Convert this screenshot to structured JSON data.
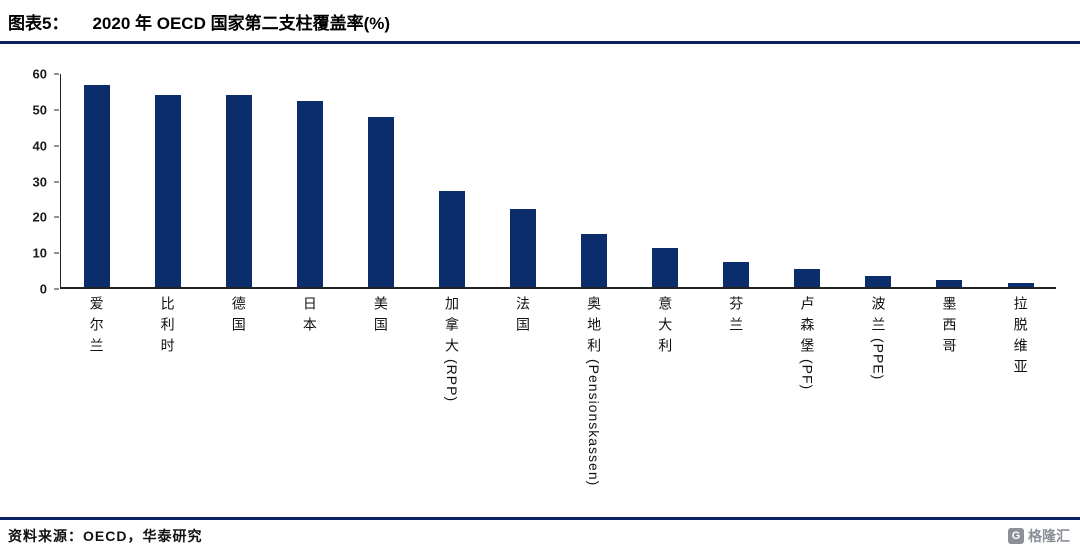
{
  "header": {
    "figure_label": "图表5：",
    "title": "2020 年 OECD 国家第二支柱覆盖率(%)"
  },
  "chart_data": {
    "type": "bar",
    "title": "2020 年 OECD 国家第二支柱覆盖率(%)",
    "categories": [
      "爱尔兰",
      "比利时",
      "德国",
      "日本",
      "美国",
      "加拿大(RPP)",
      "法国",
      "奥地利(Pensionskassen)",
      "意大利",
      "芬兰",
      "卢森堡(PF)",
      "波兰(PPE)",
      "墨西哥",
      "拉脱维亚"
    ],
    "values": [
      57,
      54,
      54,
      52.5,
      48,
      27,
      22,
      15,
      11,
      7,
      5,
      3,
      2,
      1
    ],
    "xlabel": "",
    "ylabel": "",
    "ylim": [
      0,
      60
    ],
    "yticks": [
      0,
      10,
      20,
      30,
      40,
      50,
      60
    ],
    "grid": false,
    "legend": null
  },
  "colors": {
    "bar": "#0c2d6b",
    "rule": "#0a2263",
    "axis": "#222222",
    "logo_gray": "#8b9099"
  },
  "footer": {
    "source": "资料来源：OECD，华泰研究",
    "logo_letter": "G",
    "logo_text": "格隆汇"
  }
}
